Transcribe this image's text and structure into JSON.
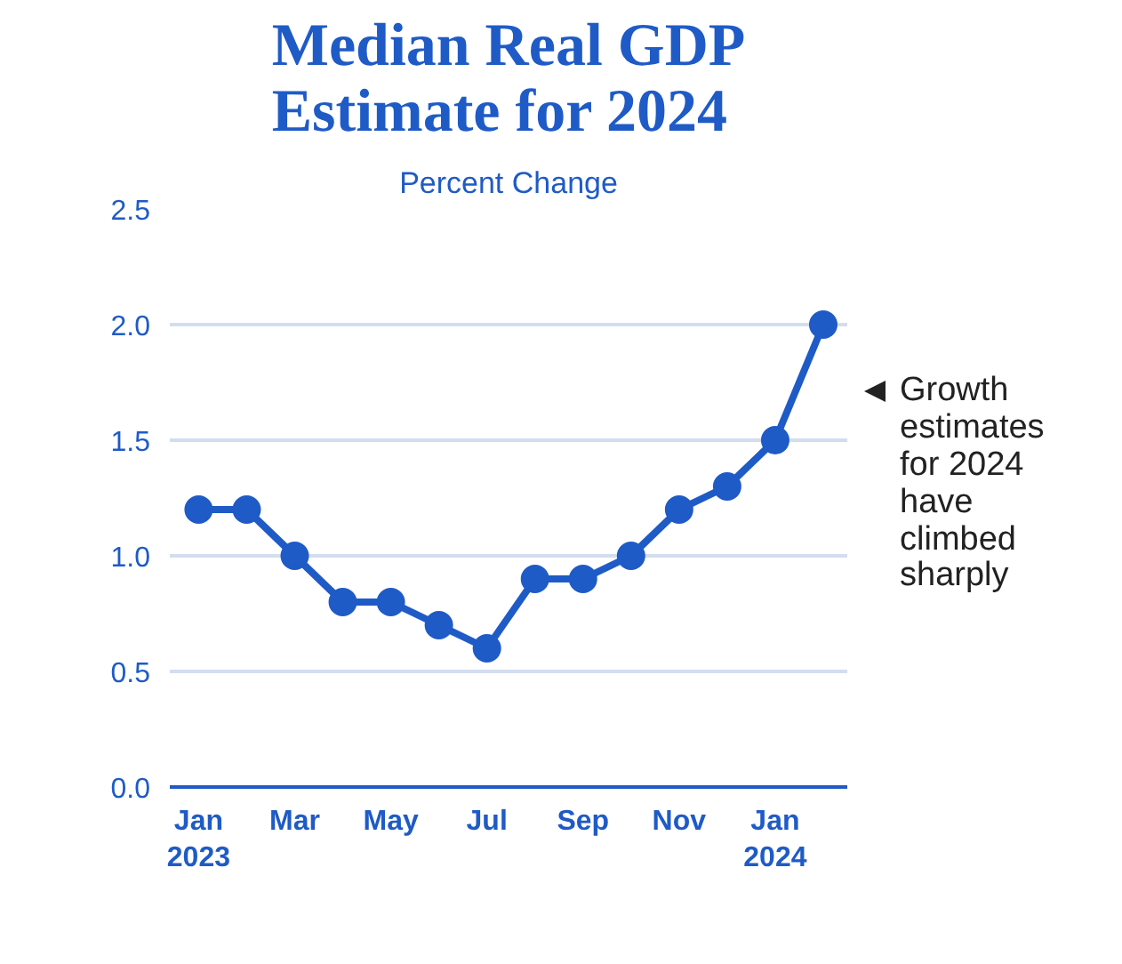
{
  "chart_data": {
    "type": "line",
    "title": "Median Real GDP\nEstimate for 2024",
    "subtitle": "Percent Change",
    "categories": [
      "Jan\n2023",
      null,
      "Mar",
      null,
      "May",
      null,
      "Jul",
      null,
      "Sep",
      null,
      "Nov",
      null,
      "Jan\n2024",
      null
    ],
    "series": [
      {
        "color": "#1f5bc6",
        "values": [
          1.2,
          1.2,
          1.0,
          0.8,
          0.8,
          0.7,
          0.6,
          0.9,
          0.9,
          1.0,
          1.2,
          1.3,
          1.5,
          2.0
        ]
      }
    ],
    "ylim": [
      0,
      2.5
    ],
    "yticks": [
      {
        "value": 0,
        "label": "0.0"
      },
      0.5,
      {
        "value": 1,
        "label": "1.0"
      },
      1.5,
      {
        "value": 2,
        "label": "2.0"
      },
      2.5
    ],
    "grid": "y",
    "marker": "circle",
    "line_style": "solid",
    "annotations": [
      "Growth\nestimates\nfor 2024\nhave\nclimbed\nsharply"
    ]
  }
}
